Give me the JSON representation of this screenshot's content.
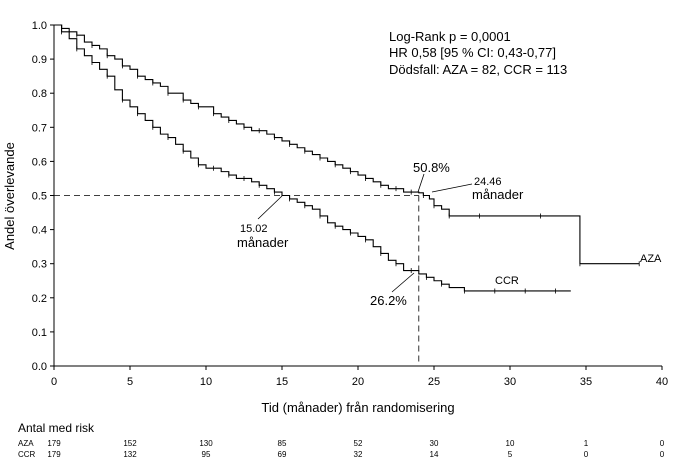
{
  "chart_data": {
    "type": "line",
    "subtype": "kaplan-meier",
    "xlabel": "Tid (månader) från randomisering",
    "ylabel": "Andel överlevande",
    "xlim": [
      0,
      40
    ],
    "ylim": [
      0,
      1
    ],
    "x_ticks": [
      "0",
      "5",
      "10",
      "15",
      "20",
      "25",
      "30",
      "35",
      "40"
    ],
    "y_ticks": [
      "0.0",
      "0.1",
      "0.2",
      "0.3",
      "0.4",
      "0.5",
      "0.6",
      "0.7",
      "0.8",
      "0.9",
      "1.0"
    ],
    "grid": false,
    "stats": [
      "Log-Rank p = 0,0001",
      "HR 0,58 [95 % CI: 0,43-0,77]",
      "Dödsfall: AZA = 82, CCR = 113"
    ],
    "series": [
      {
        "name": "AZA",
        "color": "#000000",
        "x": [
          0,
          0.5,
          1,
          1.5,
          2,
          2.5,
          3,
          3.5,
          4,
          4.5,
          5,
          5.5,
          6,
          6.5,
          7,
          7.5,
          8,
          8.5,
          9,
          9.5,
          10,
          10.5,
          11,
          11.5,
          12,
          12.5,
          13,
          13.5,
          14,
          14.5,
          15,
          15.5,
          16,
          16.5,
          17,
          17.5,
          18,
          18.5,
          19,
          19.5,
          20,
          20.5,
          21,
          21.5,
          22,
          22.5,
          23,
          23.5,
          24,
          24.3,
          24.7,
          25,
          25.5,
          26,
          27,
          28,
          30,
          32,
          34.5,
          34.6,
          36,
          38.5
        ],
        "y": [
          1.0,
          0.99,
          0.98,
          0.97,
          0.95,
          0.94,
          0.93,
          0.91,
          0.9,
          0.88,
          0.87,
          0.85,
          0.84,
          0.83,
          0.82,
          0.8,
          0.8,
          0.78,
          0.77,
          0.76,
          0.76,
          0.74,
          0.73,
          0.72,
          0.71,
          0.7,
          0.69,
          0.69,
          0.68,
          0.67,
          0.66,
          0.65,
          0.64,
          0.63,
          0.62,
          0.61,
          0.6,
          0.59,
          0.58,
          0.57,
          0.56,
          0.55,
          0.54,
          0.53,
          0.52,
          0.52,
          0.51,
          0.51,
          0.508,
          0.5,
          0.49,
          0.47,
          0.46,
          0.44,
          0.44,
          0.44,
          0.44,
          0.44,
          0.44,
          0.3,
          0.3,
          0.3
        ]
      },
      {
        "name": "CCR",
        "color": "#000000",
        "x": [
          0,
          0.5,
          1,
          1.5,
          2,
          2.5,
          3,
          3.5,
          4,
          4.5,
          5,
          5.5,
          6,
          6.5,
          7,
          7.5,
          8,
          8.5,
          9,
          9.5,
          10,
          10.5,
          11,
          11.5,
          12,
          12.5,
          13,
          13.5,
          14,
          14.5,
          15,
          15.5,
          16,
          16.5,
          17,
          17.5,
          18,
          18.5,
          19,
          19.5,
          20,
          20.5,
          21,
          21.5,
          22,
          22.5,
          23,
          23.5,
          24,
          24.5,
          25,
          25.5,
          26,
          27,
          28,
          29,
          30,
          31,
          32,
          33,
          34
        ],
        "y": [
          1.0,
          0.98,
          0.96,
          0.93,
          0.91,
          0.89,
          0.87,
          0.85,
          0.81,
          0.78,
          0.76,
          0.74,
          0.72,
          0.7,
          0.68,
          0.67,
          0.65,
          0.63,
          0.61,
          0.59,
          0.58,
          0.58,
          0.57,
          0.56,
          0.55,
          0.55,
          0.54,
          0.53,
          0.52,
          0.51,
          0.5,
          0.49,
          0.48,
          0.47,
          0.46,
          0.44,
          0.42,
          0.41,
          0.4,
          0.39,
          0.38,
          0.37,
          0.35,
          0.33,
          0.31,
          0.3,
          0.28,
          0.28,
          0.27,
          0.26,
          0.25,
          0.24,
          0.23,
          0.22,
          0.22,
          0.22,
          0.22,
          0.22,
          0.22,
          0.22,
          0.22
        ]
      }
    ],
    "median_lines": [
      {
        "x": 24.0,
        "y": 0.5,
        "style": "dashed"
      }
    ],
    "annotations": [
      {
        "id": "aza_median",
        "text_top": "24.46",
        "text_bottom": "månader"
      },
      {
        "id": "ccr_median",
        "text_top": "15.02",
        "text_bottom": "månader"
      },
      {
        "id": "aza_pct",
        "text": "50.8%"
      },
      {
        "id": "ccr_pct",
        "text": "26.2%"
      }
    ],
    "series_labels": [
      {
        "text": "AZA"
      },
      {
        "text": "CCR"
      }
    ],
    "risk_table": {
      "title": "Antal med risk",
      "timepoints": [
        0,
        5,
        10,
        15,
        20,
        25,
        30,
        35,
        40
      ],
      "rows": [
        {
          "name": "AZA",
          "values": [
            "179",
            "152",
            "130",
            "85",
            "52",
            "30",
            "10",
            "1",
            "0"
          ]
        },
        {
          "name": "CCR",
          "values": [
            "179",
            "132",
            "95",
            "69",
            "32",
            "14",
            "5",
            "0",
            "0"
          ]
        }
      ]
    }
  }
}
